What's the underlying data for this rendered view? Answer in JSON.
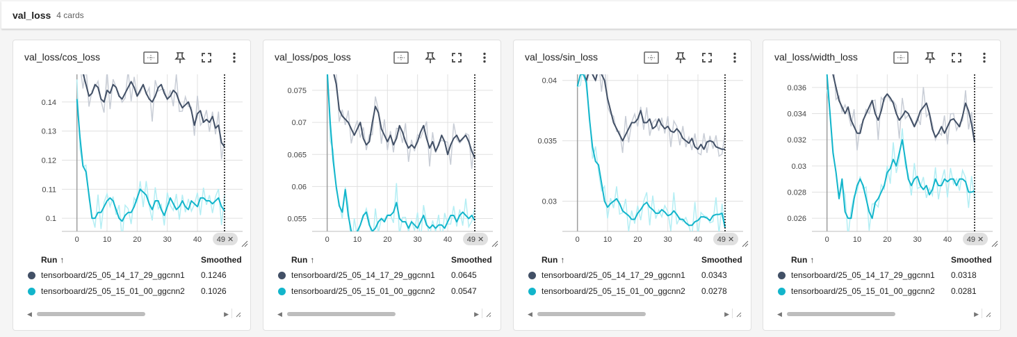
{
  "group": {
    "title": "val_loss",
    "count": "4 cards"
  },
  "legend": {
    "run_header": "Run",
    "sort_icon": "↑",
    "value_header": "Smoothed"
  },
  "colors": {
    "run1": "#425066",
    "run2": "#12b5cb",
    "run1_raw": "#c8cdd6",
    "run2_raw": "#b4eef4",
    "cursor": "#000000",
    "grid": "#e0e0e0"
  },
  "icons": [
    "fit-domain-icon",
    "pin-icon",
    "fullscreen-icon",
    "more-vert-icon",
    "resize-icon",
    "scroll-left-icon",
    "scroll-right-icon"
  ],
  "cards": [
    {
      "title": "val_loss/cos_loss",
      "runs": [
        {
          "name": "tensorboard/25_05_14_17_29_ggcnn1",
          "smoothed": "0.1246"
        },
        {
          "name": "tensorboard/25_05_15_01_00_ggcnn2",
          "smoothed": "0.1026"
        }
      ],
      "cursor_badge": "49 ✕",
      "chart_data": {
        "type": "line",
        "x_ticks": [
          "0",
          "10",
          "20",
          "30",
          "40"
        ],
        "y_ticks": [
          "0.1",
          "0.11",
          "0.12",
          "0.13",
          "0.14"
        ],
        "xlim": [
          -5,
          55
        ],
        "ylim": [
          0.0955,
          0.1495
        ],
        "cursor_x": 49,
        "series": [
          {
            "name": "tensorboard/25_05_14_17_29_ggcnn1",
            "values": [
              0.155,
              0.152,
              0.15,
              0.146,
              0.142,
              0.143,
              0.146,
              0.145,
              0.141,
              0.14,
              0.144,
              0.143,
              0.146,
              0.145,
              0.142,
              0.141,
              0.143,
              0.145,
              0.147,
              0.145,
              0.142,
              0.144,
              0.146,
              0.143,
              0.141,
              0.14,
              0.142,
              0.145,
              0.146,
              0.143,
              0.141,
              0.142,
              0.144,
              0.143,
              0.14,
              0.138,
              0.139,
              0.14,
              0.137,
              0.132,
              0.136,
              0.137,
              0.133,
              0.134,
              0.133,
              0.135,
              0.131,
              0.132,
              0.126,
              0.1246
            ]
          },
          {
            "name": "tensorboard/25_05_15_01_00_ggcnn2",
            "values": [
              0.141,
              0.128,
              0.118,
              0.116,
              0.108,
              0.1,
              0.1,
              0.102,
              0.102,
              0.104,
              0.106,
              0.107,
              0.106,
              0.103,
              0.1,
              0.099,
              0.101,
              0.102,
              0.102,
              0.104,
              0.107,
              0.11,
              0.109,
              0.108,
              0.105,
              0.103,
              0.106,
              0.106,
              0.103,
              0.101,
              0.104,
              0.107,
              0.105,
              0.103,
              0.104,
              0.106,
              0.104,
              0.103,
              0.106,
              0.105,
              0.104,
              0.107,
              0.107,
              0.106,
              0.106,
              0.105,
              0.106,
              0.107,
              0.104,
              0.1026
            ]
          }
        ]
      }
    },
    {
      "title": "val_loss/pos_loss",
      "runs": [
        {
          "name": "tensorboard/25_05_14_17_29_ggcnn1",
          "smoothed": "0.0645"
        },
        {
          "name": "tensorboard/25_05_15_01_00_ggcnn2",
          "smoothed": "0.0547"
        }
      ],
      "cursor_badge": "49 ✕",
      "chart_data": {
        "type": "line",
        "x_ticks": [
          "0",
          "10",
          "20",
          "30",
          "40"
        ],
        "y_ticks": [
          "0.055",
          "0.06",
          "0.065",
          "0.07",
          "0.075"
        ],
        "xlim": [
          -5,
          55
        ],
        "ylim": [
          0.053,
          0.0775
        ],
        "cursor_x": 49,
        "series": [
          {
            "name": "tensorboard/25_05_14_17_29_ggcnn1",
            "values": [
              0.082,
              0.08,
              0.078,
              0.076,
              0.072,
              0.071,
              0.0705,
              0.07,
              0.069,
              0.068,
              0.069,
              0.07,
              0.0675,
              0.0665,
              0.067,
              0.07,
              0.0725,
              0.0715,
              0.069,
              0.068,
              0.067,
              0.068,
              0.0665,
              0.0675,
              0.0695,
              0.0685,
              0.067,
              0.066,
              0.0665,
              0.066,
              0.067,
              0.0685,
              0.0695,
              0.0675,
              0.066,
              0.067,
              0.0655,
              0.0665,
              0.068,
              0.067,
              0.065,
              0.0665,
              0.0675,
              0.068,
              0.067,
              0.0675,
              0.068,
              0.067,
              0.0655,
              0.0645
            ]
          },
          {
            "name": "tensorboard/25_05_15_01_00_ggcnn2",
            "values": [
              0.078,
              0.07,
              0.064,
              0.06,
              0.057,
              0.056,
              0.0595,
              0.0555,
              0.053,
              0.0525,
              0.053,
              0.054,
              0.0555,
              0.056,
              0.054,
              0.053,
              0.0535,
              0.0545,
              0.055,
              0.0545,
              0.0555,
              0.0555,
              0.056,
              0.0575,
              0.055,
              0.0545,
              0.0545,
              0.0535,
              0.0545,
              0.054,
              0.0535,
              0.0545,
              0.0555,
              0.054,
              0.0535,
              0.054,
              0.0535,
              0.054,
              0.054,
              0.0535,
              0.0545,
              0.0555,
              0.0555,
              0.0545,
              0.0555,
              0.056,
              0.0555,
              0.055,
              0.0555,
              0.0547
            ]
          }
        ]
      }
    },
    {
      "title": "val_loss/sin_loss",
      "runs": [
        {
          "name": "tensorboard/25_05_14_17_29_ggcnn1",
          "smoothed": "0.0343"
        },
        {
          "name": "tensorboard/25_05_15_01_00_ggcnn2",
          "smoothed": "0.0278"
        }
      ],
      "cursor_badge": "49 ✕",
      "chart_data": {
        "type": "line",
        "x_ticks": [
          "0",
          "10",
          "20",
          "30",
          "40"
        ],
        "y_ticks": [
          "0.03",
          "0.035",
          "0.04"
        ],
        "xlim": [
          -5,
          55
        ],
        "ylim": [
          0.0275,
          0.0405
        ],
        "cursor_x": 49,
        "series": [
          {
            "name": "tensorboard/25_05_14_17_29_ggcnn1",
            "values": [
              0.0415,
              0.042,
              0.0405,
              0.04,
              0.041,
              0.0405,
              0.04,
              0.041,
              0.0405,
              0.04,
              0.0385,
              0.0375,
              0.0365,
              0.036,
              0.0355,
              0.035,
              0.0355,
              0.036,
              0.0365,
              0.0365,
              0.0368,
              0.0375,
              0.0365,
              0.0365,
              0.0368,
              0.036,
              0.0362,
              0.0368,
              0.0363,
              0.036,
              0.0362,
              0.0358,
              0.0357,
              0.036,
              0.0357,
              0.0352,
              0.035,
              0.0348,
              0.0352,
              0.0345,
              0.0343,
              0.0347,
              0.0343,
              0.0349,
              0.035,
              0.0349,
              0.0345,
              0.0344,
              0.0343,
              0.0343
            ]
          },
          {
            "name": "tensorboard/25_05_15_01_00_ggcnn2",
            "values": [
              0.0395,
              0.0405,
              0.0405,
              0.0398,
              0.0368,
              0.0345,
              0.0333,
              0.033,
              0.0315,
              0.03,
              0.0295,
              0.0298,
              0.03,
              0.0302,
              0.0298,
              0.0292,
              0.029,
              0.0288,
              0.0285,
              0.0285,
              0.029,
              0.0293,
              0.0297,
              0.0299,
              0.0295,
              0.0293,
              0.029,
              0.029,
              0.0293,
              0.0291,
              0.0288,
              0.0289,
              0.0292,
              0.0289,
              0.0285,
              0.0285,
              0.0282,
              0.028,
              0.028,
              0.0283,
              0.0284,
              0.0287,
              0.0287,
              0.0286,
              0.0284,
              0.0288,
              0.0289,
              0.0289,
              0.029,
              0.0278
            ]
          }
        ]
      }
    },
    {
      "title": "val_loss/width_loss",
      "runs": [
        {
          "name": "tensorboard/25_05_14_17_29_ggcnn1",
          "smoothed": "0.0318"
        },
        {
          "name": "tensorboard/25_05_15_01_00_ggcnn2",
          "smoothed": "0.0281"
        }
      ],
      "cursor_badge": "49 ✕",
      "chart_data": {
        "type": "line",
        "x_ticks": [
          "0",
          "10",
          "20",
          "30",
          "40"
        ],
        "y_ticks": [
          "0.026",
          "0.028",
          "0.03",
          "0.032",
          "0.034",
          "0.036"
        ],
        "xlim": [
          -5,
          55
        ],
        "ylim": [
          0.025,
          0.037
        ],
        "cursor_x": 49,
        "series": [
          {
            "name": "tensorboard/25_05_14_17_29_ggcnn1",
            "values": [
              0.038,
              0.038,
              0.037,
              0.036,
              0.035,
              0.0345,
              0.034,
              0.0345,
              0.0335,
              0.033,
              0.0325,
              0.0325,
              0.0335,
              0.034,
              0.0345,
              0.035,
              0.034,
              0.0335,
              0.0342,
              0.0352,
              0.0355,
              0.0352,
              0.0348,
              0.034,
              0.0335,
              0.0338,
              0.0342,
              0.034,
              0.0335,
              0.033,
              0.0335,
              0.0342,
              0.0345,
              0.0348,
              0.034,
              0.0328,
              0.0322,
              0.0325,
              0.033,
              0.0325,
              0.033,
              0.0335,
              0.0336,
              0.0333,
              0.033,
              0.0338,
              0.0348,
              0.0342,
              0.0332,
              0.0318
            ]
          },
          {
            "name": "tensorboard/25_05_15_01_00_ggcnn2",
            "values": [
              0.037,
              0.034,
              0.031,
              0.0295,
              0.0275,
              0.029,
              0.0265,
              0.026,
              0.026,
              0.0275,
              0.0285,
              0.029,
              0.0285,
              0.0275,
              0.0265,
              0.026,
              0.0272,
              0.0275,
              0.028,
              0.0285,
              0.0295,
              0.0298,
              0.0305,
              0.03,
              0.031,
              0.032,
              0.0305,
              0.029,
              0.0285,
              0.029,
              0.0292,
              0.0285,
              0.0282,
              0.0285,
              0.0278,
              0.0282,
              0.029,
              0.0285,
              0.0285,
              0.029,
              0.0288,
              0.029,
              0.029,
              0.0285,
              0.029,
              0.029,
              0.0288,
              0.028,
              0.028,
              0.0281
            ]
          }
        ]
      }
    }
  ]
}
